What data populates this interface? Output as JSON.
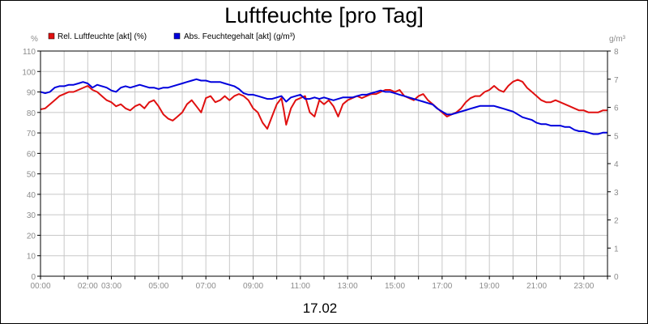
{
  "chart_data": {
    "type": "line",
    "title": "Luftfeuchte [pro Tag]",
    "xlabel": "17.02",
    "left_unit": "%",
    "right_unit": "g/m³",
    "ylim_left": [
      0,
      110
    ],
    "ylim_right": [
      0,
      8
    ],
    "yticks_left": [
      "0",
      "10",
      "20",
      "30",
      "40",
      "50",
      "60",
      "70",
      "80",
      "90",
      "100",
      "110"
    ],
    "yticks_right": [
      "0",
      "1",
      "2",
      "3",
      "4",
      "5",
      "6",
      "7",
      "8"
    ],
    "x_range_hours": [
      0,
      24
    ],
    "xticks": [
      "00:00",
      "02:00",
      "03:00",
      "05:00",
      "07:00",
      "09:00",
      "11:00",
      "13:00",
      "15:00",
      "17:00",
      "19:00",
      "21:00",
      "23:00"
    ],
    "xtick_hours": [
      0,
      2,
      3,
      5,
      7,
      9,
      11,
      13,
      15,
      17,
      19,
      21,
      23
    ],
    "grid": true,
    "legend_position": "top-left",
    "series": [
      {
        "name": "Rel. Luftfeuchte [akt] (%)",
        "color": "#e01010",
        "axis": "left",
        "points": [
          [
            0,
            81.5
          ],
          [
            0.2,
            82
          ],
          [
            0.4,
            84
          ],
          [
            0.6,
            86
          ],
          [
            0.8,
            88
          ],
          [
            1.0,
            89
          ],
          [
            1.2,
            90
          ],
          [
            1.4,
            90
          ],
          [
            1.6,
            91
          ],
          [
            1.8,
            92
          ],
          [
            2.0,
            93
          ],
          [
            2.2,
            91
          ],
          [
            2.4,
            90
          ],
          [
            2.6,
            88
          ],
          [
            2.8,
            86
          ],
          [
            3.0,
            85
          ],
          [
            3.2,
            83
          ],
          [
            3.4,
            84
          ],
          [
            3.6,
            82
          ],
          [
            3.8,
            81
          ],
          [
            4.0,
            83
          ],
          [
            4.2,
            84
          ],
          [
            4.4,
            82
          ],
          [
            4.6,
            85
          ],
          [
            4.8,
            86
          ],
          [
            5.0,
            83
          ],
          [
            5.2,
            79
          ],
          [
            5.4,
            77
          ],
          [
            5.6,
            76
          ],
          [
            5.8,
            78
          ],
          [
            6.0,
            80
          ],
          [
            6.2,
            84
          ],
          [
            6.4,
            86
          ],
          [
            6.6,
            83
          ],
          [
            6.8,
            80
          ],
          [
            7.0,
            87
          ],
          [
            7.2,
            88
          ],
          [
            7.4,
            85
          ],
          [
            7.6,
            86
          ],
          [
            7.8,
            88
          ],
          [
            8.0,
            86
          ],
          [
            8.2,
            88
          ],
          [
            8.4,
            89
          ],
          [
            8.6,
            88
          ],
          [
            8.8,
            86
          ],
          [
            9.0,
            82
          ],
          [
            9.2,
            80
          ],
          [
            9.4,
            75
          ],
          [
            9.6,
            72
          ],
          [
            9.8,
            78
          ],
          [
            10.0,
            84
          ],
          [
            10.2,
            87
          ],
          [
            10.3,
            81
          ],
          [
            10.4,
            74
          ],
          [
            10.6,
            82
          ],
          [
            10.8,
            86
          ],
          [
            11.0,
            87
          ],
          [
            11.2,
            88
          ],
          [
            11.4,
            80
          ],
          [
            11.6,
            78
          ],
          [
            11.8,
            86
          ],
          [
            12.0,
            84
          ],
          [
            12.2,
            86
          ],
          [
            12.4,
            83
          ],
          [
            12.6,
            78
          ],
          [
            12.8,
            84
          ],
          [
            13.0,
            86
          ],
          [
            13.2,
            87
          ],
          [
            13.4,
            88
          ],
          [
            13.6,
            87
          ],
          [
            13.8,
            88
          ],
          [
            14.0,
            89
          ],
          [
            14.2,
            89
          ],
          [
            14.4,
            90
          ],
          [
            14.6,
            91
          ],
          [
            14.8,
            91
          ],
          [
            15.0,
            90
          ],
          [
            15.2,
            91
          ],
          [
            15.4,
            88
          ],
          [
            15.6,
            87
          ],
          [
            15.8,
            86
          ],
          [
            16.0,
            88
          ],
          [
            16.2,
            89
          ],
          [
            16.4,
            86
          ],
          [
            16.6,
            84
          ],
          [
            16.8,
            82
          ],
          [
            17.0,
            80
          ],
          [
            17.2,
            78
          ],
          [
            17.4,
            79
          ],
          [
            17.6,
            80
          ],
          [
            17.8,
            82
          ],
          [
            18.0,
            85
          ],
          [
            18.2,
            87
          ],
          [
            18.4,
            88
          ],
          [
            18.6,
            88
          ],
          [
            18.8,
            90
          ],
          [
            19.0,
            91
          ],
          [
            19.2,
            93
          ],
          [
            19.4,
            91
          ],
          [
            19.6,
            90
          ],
          [
            19.8,
            93
          ],
          [
            20.0,
            95
          ],
          [
            20.2,
            96
          ],
          [
            20.4,
            95
          ],
          [
            20.6,
            92
          ],
          [
            20.8,
            90
          ],
          [
            21.0,
            88
          ],
          [
            21.2,
            86
          ],
          [
            21.4,
            85
          ],
          [
            21.6,
            85
          ],
          [
            21.8,
            86
          ],
          [
            22.0,
            85
          ],
          [
            22.2,
            84
          ],
          [
            22.4,
            83
          ],
          [
            22.6,
            82
          ],
          [
            22.8,
            81
          ],
          [
            23.0,
            81
          ],
          [
            23.2,
            80
          ],
          [
            23.4,
            80
          ],
          [
            23.6,
            80
          ],
          [
            23.8,
            81
          ],
          [
            24.0,
            81
          ]
        ]
      },
      {
        "name": "Abs. Feuchtegehalt [akt] (g/m³)",
        "color": "#0000dd",
        "axis": "right",
        "points": [
          [
            0,
            6.55
          ],
          [
            0.2,
            6.5
          ],
          [
            0.4,
            6.55
          ],
          [
            0.6,
            6.7
          ],
          [
            0.8,
            6.75
          ],
          [
            1.0,
            6.75
          ],
          [
            1.2,
            6.8
          ],
          [
            1.4,
            6.8
          ],
          [
            1.6,
            6.85
          ],
          [
            1.8,
            6.9
          ],
          [
            2.0,
            6.85
          ],
          [
            2.2,
            6.7
          ],
          [
            2.4,
            6.8
          ],
          [
            2.6,
            6.75
          ],
          [
            2.8,
            6.7
          ],
          [
            3.0,
            6.6
          ],
          [
            3.2,
            6.55
          ],
          [
            3.4,
            6.7
          ],
          [
            3.6,
            6.75
          ],
          [
            3.8,
            6.7
          ],
          [
            4.0,
            6.75
          ],
          [
            4.2,
            6.8
          ],
          [
            4.4,
            6.75
          ],
          [
            4.6,
            6.7
          ],
          [
            4.8,
            6.7
          ],
          [
            5.0,
            6.65
          ],
          [
            5.2,
            6.7
          ],
          [
            5.4,
            6.7
          ],
          [
            5.6,
            6.75
          ],
          [
            5.8,
            6.8
          ],
          [
            6.0,
            6.85
          ],
          [
            6.2,
            6.9
          ],
          [
            6.4,
            6.95
          ],
          [
            6.6,
            7.0
          ],
          [
            6.8,
            6.95
          ],
          [
            7.0,
            6.95
          ],
          [
            7.2,
            6.9
          ],
          [
            7.4,
            6.9
          ],
          [
            7.6,
            6.9
          ],
          [
            7.8,
            6.85
          ],
          [
            8.0,
            6.8
          ],
          [
            8.2,
            6.75
          ],
          [
            8.4,
            6.65
          ],
          [
            8.6,
            6.5
          ],
          [
            8.8,
            6.45
          ],
          [
            9.0,
            6.45
          ],
          [
            9.2,
            6.4
          ],
          [
            9.4,
            6.35
          ],
          [
            9.6,
            6.3
          ],
          [
            9.8,
            6.3
          ],
          [
            10.0,
            6.35
          ],
          [
            10.2,
            6.4
          ],
          [
            10.4,
            6.2
          ],
          [
            10.6,
            6.35
          ],
          [
            10.8,
            6.4
          ],
          [
            11.0,
            6.45
          ],
          [
            11.2,
            6.3
          ],
          [
            11.4,
            6.3
          ],
          [
            11.6,
            6.35
          ],
          [
            11.8,
            6.3
          ],
          [
            12.0,
            6.35
          ],
          [
            12.2,
            6.3
          ],
          [
            12.4,
            6.25
          ],
          [
            12.6,
            6.3
          ],
          [
            12.8,
            6.35
          ],
          [
            13.0,
            6.35
          ],
          [
            13.2,
            6.35
          ],
          [
            13.4,
            6.4
          ],
          [
            13.6,
            6.45
          ],
          [
            13.8,
            6.45
          ],
          [
            14.0,
            6.5
          ],
          [
            14.2,
            6.55
          ],
          [
            14.4,
            6.6
          ],
          [
            14.6,
            6.55
          ],
          [
            14.8,
            6.55
          ],
          [
            15.0,
            6.5
          ],
          [
            15.2,
            6.45
          ],
          [
            15.4,
            6.4
          ],
          [
            15.6,
            6.35
          ],
          [
            15.8,
            6.3
          ],
          [
            16.0,
            6.25
          ],
          [
            16.2,
            6.2
          ],
          [
            16.4,
            6.15
          ],
          [
            16.6,
            6.1
          ],
          [
            16.8,
            5.95
          ],
          [
            17.0,
            5.85
          ],
          [
            17.2,
            5.75
          ],
          [
            17.4,
            5.75
          ],
          [
            17.6,
            5.8
          ],
          [
            17.8,
            5.85
          ],
          [
            18.0,
            5.9
          ],
          [
            18.2,
            5.95
          ],
          [
            18.4,
            6.0
          ],
          [
            18.6,
            6.05
          ],
          [
            18.8,
            6.05
          ],
          [
            19.0,
            6.05
          ],
          [
            19.2,
            6.05
          ],
          [
            19.4,
            6.0
          ],
          [
            19.6,
            5.95
          ],
          [
            19.8,
            5.9
          ],
          [
            20.0,
            5.85
          ],
          [
            20.2,
            5.75
          ],
          [
            20.4,
            5.65
          ],
          [
            20.6,
            5.6
          ],
          [
            20.8,
            5.55
          ],
          [
            21.0,
            5.45
          ],
          [
            21.2,
            5.4
          ],
          [
            21.4,
            5.4
          ],
          [
            21.6,
            5.35
          ],
          [
            21.8,
            5.35
          ],
          [
            22.0,
            5.35
          ],
          [
            22.2,
            5.3
          ],
          [
            22.4,
            5.3
          ],
          [
            22.6,
            5.2
          ],
          [
            22.8,
            5.15
          ],
          [
            23.0,
            5.15
          ],
          [
            23.2,
            5.1
          ],
          [
            23.4,
            5.05
          ],
          [
            23.6,
            5.05
          ],
          [
            23.8,
            5.1
          ],
          [
            24.0,
            5.1
          ]
        ]
      }
    ]
  }
}
